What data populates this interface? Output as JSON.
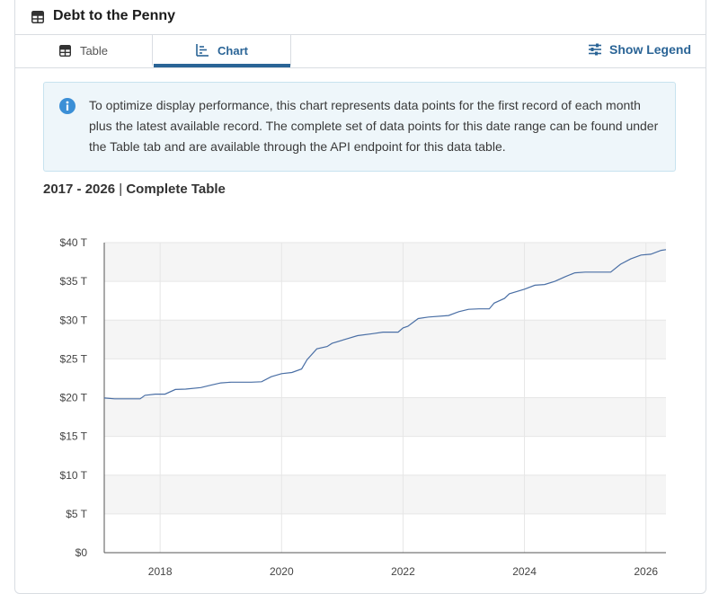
{
  "header": {
    "title": "Debt to the Penny",
    "icon": "table-icon"
  },
  "tabs": [
    {
      "label": "Table",
      "icon": "table-icon",
      "active": false
    },
    {
      "label": "Chart",
      "icon": "chart-icon",
      "active": true
    }
  ],
  "legend_button": {
    "label": "Show Legend",
    "icon": "sliders-icon"
  },
  "info": {
    "icon": "info-icon",
    "text": "To optimize display performance, this chart represents data points for the first record of each month plus the latest available record. The complete set of data points for this date range can be found under the Table tab and are available through the API endpoint for this data table."
  },
  "chart_heading": {
    "range": "2017 - 2026",
    "separator": "|",
    "label": "Complete Table"
  },
  "colors": {
    "accent": "#2a6496",
    "line": "#4a6fa5"
  },
  "chart_data": {
    "type": "line",
    "ylim": [
      0,
      40
    ],
    "y_ticks": [
      {
        "value": 0,
        "label": "$0"
      },
      {
        "value": 5,
        "label": "$5 T"
      },
      {
        "value": 10,
        "label": "$10 T"
      },
      {
        "value": 15,
        "label": "$15 T"
      },
      {
        "value": 20,
        "label": "$20 T"
      },
      {
        "value": 25,
        "label": "$25 T"
      },
      {
        "value": 30,
        "label": "$30 T"
      },
      {
        "value": 35,
        "label": "$35 T"
      },
      {
        "value": 40,
        "label": "$40 T"
      }
    ],
    "xlim": [
      2017.08,
      2026.33
    ],
    "x_ticks": [
      2018,
      2020,
      2022,
      2024,
      2026
    ],
    "grid": true,
    "series": [
      {
        "values": [
          [
            2017.08,
            19.95
          ],
          [
            2017.25,
            19.85
          ],
          [
            2017.5,
            19.85
          ],
          [
            2017.67,
            19.85
          ],
          [
            2017.75,
            20.3
          ],
          [
            2017.92,
            20.45
          ],
          [
            2018.08,
            20.45
          ],
          [
            2018.25,
            21.05
          ],
          [
            2018.42,
            21.1
          ],
          [
            2018.67,
            21.3
          ],
          [
            2018.83,
            21.6
          ],
          [
            2019.0,
            21.9
          ],
          [
            2019.17,
            22.0
          ],
          [
            2019.5,
            22.0
          ],
          [
            2019.67,
            22.05
          ],
          [
            2019.83,
            22.7
          ],
          [
            2020.0,
            23.1
          ],
          [
            2020.17,
            23.25
          ],
          [
            2020.33,
            23.7
          ],
          [
            2020.42,
            24.9
          ],
          [
            2020.58,
            26.3
          ],
          [
            2020.75,
            26.6
          ],
          [
            2020.83,
            27.0
          ],
          [
            2021.08,
            27.6
          ],
          [
            2021.25,
            28.0
          ],
          [
            2021.5,
            28.25
          ],
          [
            2021.67,
            28.45
          ],
          [
            2021.92,
            28.45
          ],
          [
            2022.0,
            29.0
          ],
          [
            2022.08,
            29.2
          ],
          [
            2022.25,
            30.2
          ],
          [
            2022.42,
            30.4
          ],
          [
            2022.75,
            30.6
          ],
          [
            2022.92,
            31.1
          ],
          [
            2023.08,
            31.4
          ],
          [
            2023.25,
            31.45
          ],
          [
            2023.42,
            31.45
          ],
          [
            2023.5,
            32.2
          ],
          [
            2023.67,
            32.8
          ],
          [
            2023.75,
            33.4
          ],
          [
            2024.0,
            34.0
          ],
          [
            2024.17,
            34.5
          ],
          [
            2024.33,
            34.6
          ],
          [
            2024.5,
            35.0
          ],
          [
            2024.67,
            35.6
          ],
          [
            2024.83,
            36.1
          ],
          [
            2025.0,
            36.2
          ],
          [
            2025.42,
            36.2
          ],
          [
            2025.58,
            37.2
          ],
          [
            2025.75,
            37.9
          ],
          [
            2025.92,
            38.4
          ],
          [
            2026.08,
            38.5
          ],
          [
            2026.25,
            39.0
          ],
          [
            2026.33,
            39.1
          ]
        ]
      }
    ]
  }
}
